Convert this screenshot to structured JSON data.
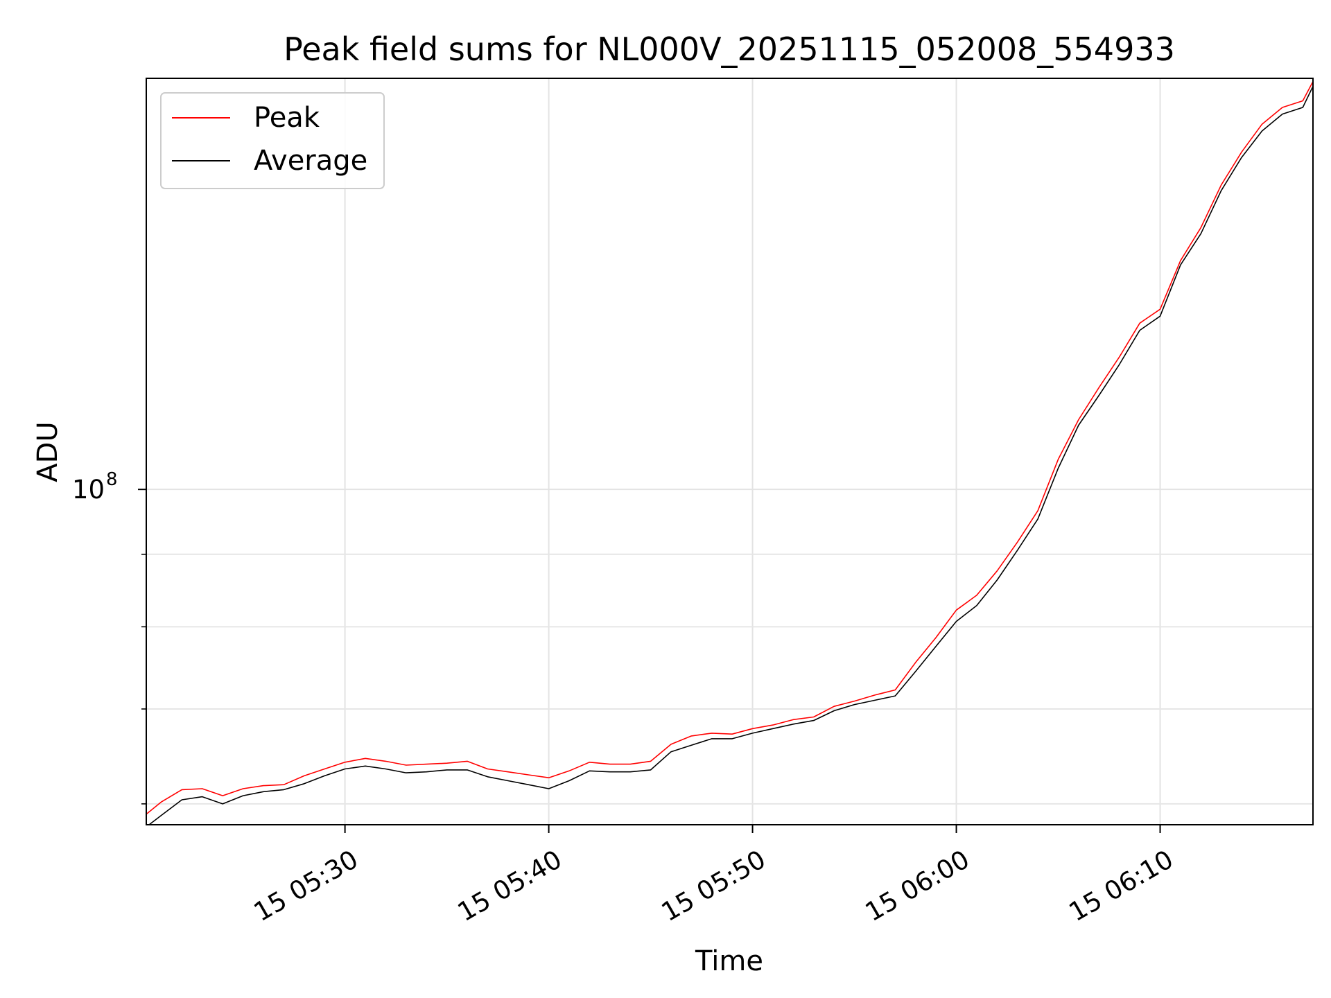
{
  "chart_data": {
    "type": "line",
    "title": "Peak field sums for NL000V_20251115_052008_554933",
    "xlabel": "Time",
    "ylabel": "ADU",
    "y_scale": "log",
    "x_range": [
      "2025-11-15 05:20:15",
      "2025-11-15 06:17:30"
    ],
    "ylim": [
      58000000,
      195000000
    ],
    "x_ticks": [
      {
        "t": "2025-11-15 05:30",
        "label": "15 05:30"
      },
      {
        "t": "2025-11-15 05:40",
        "label": "15 05:40"
      },
      {
        "t": "2025-11-15 05:50",
        "label": "15 05:50"
      },
      {
        "t": "2025-11-15 06:00",
        "label": "15 06:00"
      },
      {
        "t": "2025-11-15 06:10",
        "label": "15 06:10"
      }
    ],
    "y_major_ticks": [
      {
        "value": 100000000,
        "base": "10",
        "exponent": "8"
      }
    ],
    "y_minor_ticks": [
      60000000,
      70000000,
      80000000,
      90000000
    ],
    "grid": true,
    "legend_position": "top-left",
    "x": [
      "2025-11-15 05:20:15",
      "2025-11-15 05:21:00",
      "2025-11-15 05:22:00",
      "2025-11-15 05:23:00",
      "2025-11-15 05:24:00",
      "2025-11-15 05:25:00",
      "2025-11-15 05:26:00",
      "2025-11-15 05:27:00",
      "2025-11-15 05:28:00",
      "2025-11-15 05:29:00",
      "2025-11-15 05:30:00",
      "2025-11-15 05:31:00",
      "2025-11-15 05:32:00",
      "2025-11-15 05:33:00",
      "2025-11-15 05:34:00",
      "2025-11-15 05:35:00",
      "2025-11-15 05:36:00",
      "2025-11-15 05:37:00",
      "2025-11-15 05:38:00",
      "2025-11-15 05:39:00",
      "2025-11-15 05:40:00",
      "2025-11-15 05:41:00",
      "2025-11-15 05:42:00",
      "2025-11-15 05:43:00",
      "2025-11-15 05:44:00",
      "2025-11-15 05:45:00",
      "2025-11-15 05:46:00",
      "2025-11-15 05:47:00",
      "2025-11-15 05:48:00",
      "2025-11-15 05:49:00",
      "2025-11-15 05:50:00",
      "2025-11-15 05:51:00",
      "2025-11-15 05:52:00",
      "2025-11-15 05:53:00",
      "2025-11-15 05:54:00",
      "2025-11-15 05:55:00",
      "2025-11-15 05:56:00",
      "2025-11-15 05:57:00",
      "2025-11-15 05:58:00",
      "2025-11-15 05:59:00",
      "2025-11-15 06:00:00",
      "2025-11-15 06:01:00",
      "2025-11-15 06:02:00",
      "2025-11-15 06:03:00",
      "2025-11-15 06:04:00",
      "2025-11-15 06:05:00",
      "2025-11-15 06:06:00",
      "2025-11-15 06:07:00",
      "2025-11-15 06:08:00",
      "2025-11-15 06:09:00",
      "2025-11-15 06:10:00",
      "2025-11-15 06:11:00",
      "2025-11-15 06:12:00",
      "2025-11-15 06:13:00",
      "2025-11-15 06:14:00",
      "2025-11-15 06:15:00",
      "2025-11-15 06:16:00",
      "2025-11-15 06:17:00",
      "2025-11-15 06:17:30"
    ],
    "series": [
      {
        "name": "Peak",
        "color": "#ff0000",
        "values": [
          59000000,
          60200000,
          61400000,
          61500000,
          60800000,
          61500000,
          61800000,
          61900000,
          62800000,
          63500000,
          64200000,
          64600000,
          64300000,
          63900000,
          64000000,
          64100000,
          64300000,
          63500000,
          63200000,
          62900000,
          62600000,
          63300000,
          64200000,
          64000000,
          64000000,
          64300000,
          66100000,
          67000000,
          67300000,
          67200000,
          67800000,
          68200000,
          68800000,
          69100000,
          70300000,
          70900000,
          71600000,
          72200000,
          75500000,
          78600000,
          82200000,
          84200000,
          87600000,
          91800000,
          96600000,
          105000000,
          112000000,
          118000000,
          124000000,
          131000000,
          134000000,
          145000000,
          153000000,
          164000000,
          173000000,
          181000000,
          186000000,
          188000000,
          194000000
        ]
      },
      {
        "name": "Average",
        "color": "#000000",
        "values": [
          57800000,
          58900000,
          60400000,
          60700000,
          60000000,
          60800000,
          61200000,
          61400000,
          62000000,
          62800000,
          63500000,
          63800000,
          63500000,
          63100000,
          63200000,
          63400000,
          63400000,
          62700000,
          62300000,
          61900000,
          61500000,
          62300000,
          63300000,
          63200000,
          63200000,
          63400000,
          65300000,
          66000000,
          66700000,
          66700000,
          67300000,
          67800000,
          68300000,
          68700000,
          69800000,
          70500000,
          71000000,
          71500000,
          74400000,
          77500000,
          80700000,
          82800000,
          86300000,
          90600000,
          95300000,
          103500000,
          111000000,
          116500000,
          122500000,
          129500000,
          132500000,
          144000000,
          151500000,
          162500000,
          171500000,
          179000000,
          184000000,
          186000000,
          192500000
        ]
      }
    ]
  }
}
